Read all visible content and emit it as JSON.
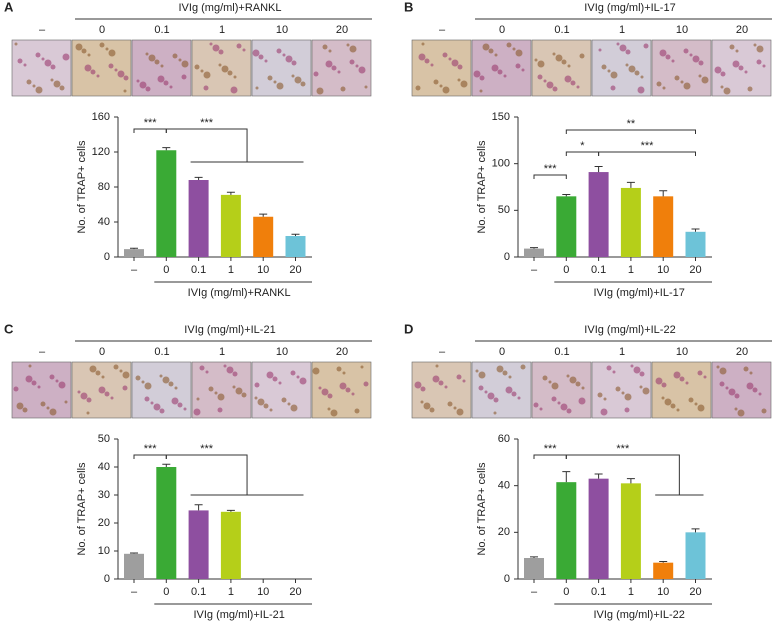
{
  "chart_data": [
    {
      "type": "bar",
      "panel": "A",
      "header": "IVIg (mg/ml)+RANKL",
      "image_labels": [
        "–",
        "0",
        "0.1",
        "1",
        "10",
        "20"
      ],
      "ylabel": "No. of TRAP+ cells",
      "categories": [
        "–",
        "0",
        "0.1",
        "1",
        "10",
        "20"
      ],
      "values": [
        9,
        122,
        88,
        71,
        46,
        24
      ],
      "errors": [
        1,
        3,
        3,
        3,
        3,
        2
      ],
      "colors": [
        "#9e9e9e",
        "#3aaa35",
        "#8e4fa0",
        "#b5cf19",
        "#f07f0b",
        "#6dc3d8"
      ],
      "ylim": [
        0,
        160
      ],
      "yticks": [
        0,
        40,
        80,
        120,
        160
      ],
      "xlabel": "IVIg (mg/ml)+RANKL",
      "annotations": [
        "***",
        "***"
      ]
    },
    {
      "type": "bar",
      "panel": "B",
      "header": "IVIg (mg/ml)+IL-17",
      "image_labels": [
        "–",
        "0",
        "0.1",
        "1",
        "10",
        "20"
      ],
      "ylabel": "No. of TRAP+ cells",
      "categories": [
        "–",
        "0",
        "0.1",
        "1",
        "10",
        "20"
      ],
      "values": [
        9,
        65,
        91,
        74,
        65,
        27
      ],
      "errors": [
        1,
        2,
        6,
        6,
        6,
        3
      ],
      "colors": [
        "#9e9e9e",
        "#3aaa35",
        "#8e4fa0",
        "#b5cf19",
        "#f07f0b",
        "#6dc3d8"
      ],
      "ylim": [
        0,
        150
      ],
      "yticks": [
        0,
        50,
        100,
        150
      ],
      "xlabel": "IVIg (mg/ml)+IL-17",
      "annotations": [
        "***",
        "*",
        "**",
        "***"
      ]
    },
    {
      "type": "bar",
      "panel": "C",
      "header": "IVIg (mg/ml)+IL-21",
      "image_labels": [
        "–",
        "0",
        "0.1",
        "1",
        "10",
        "20"
      ],
      "ylabel": "No. of TRAP+ cells",
      "categories": [
        "–",
        "0",
        "0.1",
        "1",
        "10",
        "20"
      ],
      "values": [
        9,
        40,
        24.5,
        24,
        null,
        null
      ],
      "errors": [
        0.3,
        1,
        2,
        0.5,
        null,
        null
      ],
      "colors": [
        "#9e9e9e",
        "#3aaa35",
        "#8e4fa0",
        "#b5cf19",
        "#f07f0b",
        "#6dc3d8"
      ],
      "ylim": [
        0,
        50
      ],
      "yticks": [
        0,
        10,
        20,
        30,
        40,
        50
      ],
      "xlabel": "IVIg (mg/ml)+IL-21",
      "annotations": [
        "***",
        "***"
      ]
    },
    {
      "type": "bar",
      "panel": "D",
      "header": "IVIg (mg/ml)+IL-22",
      "image_labels": [
        "–",
        "0",
        "0.1",
        "1",
        "10",
        "20"
      ],
      "ylabel": "No. of TRAP+ cells",
      "categories": [
        "–",
        "0",
        "0.1",
        "1",
        "10",
        "20"
      ],
      "values": [
        9,
        41.5,
        43,
        41,
        7,
        20
      ],
      "errors": [
        0.5,
        4.5,
        2,
        2,
        0.5,
        1.5
      ],
      "colors": [
        "#9e9e9e",
        "#3aaa35",
        "#8e4fa0",
        "#b5cf19",
        "#f07f0b",
        "#6dc3d8"
      ],
      "ylim": [
        0,
        60
      ],
      "yticks": [
        0,
        20,
        40,
        60
      ],
      "xlabel": "IVIg (mg/ml)+IL-22",
      "annotations": [
        "***",
        "***"
      ]
    }
  ]
}
